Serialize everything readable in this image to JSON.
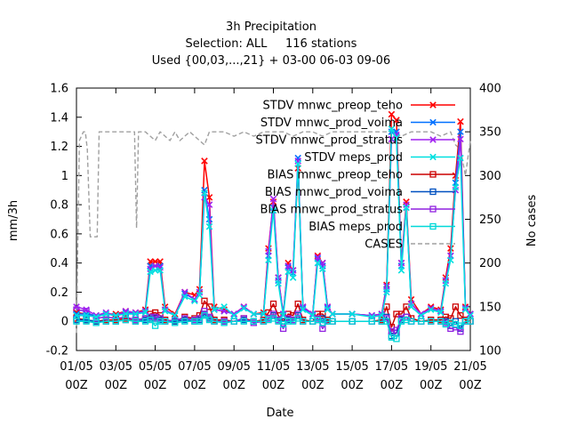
{
  "chart_data": {
    "type": "line",
    "title": [
      "3h Precipitation",
      "Selection: ALL     116 stations",
      "Used {00,03,...,21} + 03-00 06-03 09-06"
    ],
    "xlabel": "Date",
    "ylabel": "mm/3h",
    "y2label": "No cases",
    "xlim": [
      0,
      20
    ],
    "ylim": [
      -0.2,
      1.6
    ],
    "y2lim": [
      100,
      400
    ],
    "grid": false,
    "legend_position": "top-right",
    "x_ticks": [
      {
        "x": 0,
        "label": [
          "01/05",
          "00Z"
        ]
      },
      {
        "x": 2,
        "label": [
          "03/05",
          "00Z"
        ]
      },
      {
        "x": 4,
        "label": [
          "05/05",
          "00Z"
        ]
      },
      {
        "x": 6,
        "label": [
          "07/05",
          "00Z"
        ]
      },
      {
        "x": 8,
        "label": [
          "09/05",
          "00Z"
        ]
      },
      {
        "x": 10,
        "label": [
          "11/05",
          "00Z"
        ]
      },
      {
        "x": 12,
        "label": [
          "13/05",
          "00Z"
        ]
      },
      {
        "x": 14,
        "label": [
          "15/05",
          "00Z"
        ]
      },
      {
        "x": 16,
        "label": [
          "17/05",
          "00Z"
        ]
      },
      {
        "x": 18,
        "label": [
          "19/05",
          "00Z"
        ]
      },
      {
        "x": 20,
        "label": [
          "21/05",
          "00Z"
        ]
      }
    ],
    "y_ticks": [
      "-0.2",
      "0",
      "0.2",
      "0.4",
      "0.6",
      "0.8",
      "1",
      "1.2",
      "1.4",
      "1.6"
    ],
    "y2_ticks": [
      "100",
      "150",
      "200",
      "250",
      "300",
      "350",
      "400"
    ],
    "series": [
      {
        "name": "STDV mnwc_preop_teho",
        "color": "#ff0000",
        "style": "solid",
        "marker": "x",
        "x": [
          0,
          0.5,
          1,
          1.5,
          2,
          2.5,
          3,
          3.5,
          3.75,
          4,
          4.25,
          4.5,
          5,
          5.5,
          6,
          6.25,
          6.5,
          6.75,
          7,
          7.5,
          8,
          8.5,
          9,
          9.5,
          9.75,
          10,
          10.25,
          10.5,
          10.75,
          11,
          11.25,
          11.5,
          12,
          12.25,
          12.5,
          12.75,
          13,
          14,
          15,
          15.5,
          15.75,
          16,
          16.25,
          16.5,
          16.75,
          17,
          17.5,
          18,
          18.5,
          18.75,
          19,
          19.25,
          19.5,
          19.75,
          20
        ],
        "y": [
          0.06,
          0.05,
          0.04,
          0.05,
          0.05,
          0.07,
          0.06,
          0.08,
          0.41,
          0.41,
          0.41,
          0.1,
          0.05,
          0.2,
          0.18,
          0.22,
          1.1,
          0.85,
          0.1,
          0.08,
          0.05,
          0.1,
          0.05,
          0.06,
          0.5,
          0.82,
          0.3,
          0.05,
          0.4,
          0.35,
          1.05,
          0.1,
          0.05,
          0.45,
          0.4,
          0.1,
          0.05,
          0.05,
          0.04,
          0.05,
          0.25,
          1.42,
          1.38,
          0.4,
          0.82,
          0.15,
          0.05,
          0.1,
          0.08,
          0.3,
          0.5,
          1.0,
          1.37,
          0.1,
          0.05
        ]
      },
      {
        "name": "STDV mnwc_prod_voima",
        "color": "#0070ff",
        "style": "solid",
        "marker": "x",
        "x": [
          0,
          0.5,
          1,
          1.5,
          2,
          2.5,
          3,
          3.5,
          3.75,
          4,
          4.25,
          4.5,
          5,
          5.5,
          6,
          6.25,
          6.5,
          6.75,
          7,
          7.5,
          8,
          8.5,
          9,
          9.5,
          9.75,
          10,
          10.25,
          10.5,
          10.75,
          11,
          11.25,
          11.5,
          12,
          12.25,
          12.5,
          12.75,
          13,
          14,
          15,
          15.5,
          15.75,
          16,
          16.25,
          16.5,
          16.75,
          17,
          17.5,
          18,
          18.5,
          18.75,
          19,
          19.25,
          19.5,
          19.75,
          20
        ],
        "y": [
          0.05,
          0.05,
          0.04,
          0.05,
          0.04,
          0.06,
          0.05,
          0.07,
          0.38,
          0.38,
          0.38,
          0.08,
          0.04,
          0.19,
          0.15,
          0.2,
          0.9,
          0.7,
          0.08,
          0.07,
          0.05,
          0.09,
          0.05,
          0.05,
          0.45,
          0.78,
          0.28,
          0.05,
          0.37,
          0.33,
          1.12,
          0.09,
          0.05,
          0.43,
          0.38,
          0.09,
          0.05,
          0.05,
          0.04,
          0.05,
          0.22,
          1.3,
          1.3,
          0.38,
          0.78,
          0.12,
          0.05,
          0.09,
          0.07,
          0.28,
          0.45,
          0.95,
          1.3,
          0.09,
          0.05
        ]
      },
      {
        "name": "STDV mnwc_prod_stratus",
        "color": "#a020f0",
        "style": "solid",
        "marker": "x",
        "x": [
          0,
          0.5,
          1,
          1.5,
          2,
          2.5,
          3,
          3.5,
          3.75,
          4,
          4.25,
          4.5,
          5,
          5.5,
          6,
          6.25,
          6.5,
          6.75,
          7,
          7.5,
          8,
          8.5,
          9,
          9.5,
          9.75,
          10,
          10.25,
          10.5,
          10.75,
          11,
          11.25,
          11.5,
          12,
          12.25,
          12.5,
          12.75,
          13,
          14,
          15,
          15.5,
          15.75,
          16,
          16.25,
          16.5,
          16.75,
          17,
          17.5,
          18,
          18.5,
          18.75,
          19,
          19.25,
          19.5,
          19.75,
          20
        ],
        "y": [
          0.1,
          0.08,
          0.04,
          0.06,
          0.04,
          0.07,
          0.06,
          0.07,
          0.36,
          0.38,
          0.37,
          0.08,
          0.04,
          0.2,
          0.15,
          0.2,
          0.85,
          0.8,
          0.08,
          0.07,
          0.05,
          0.1,
          0.05,
          0.05,
          0.48,
          0.84,
          0.3,
          0.05,
          0.38,
          0.35,
          1.1,
          0.1,
          0.05,
          0.44,
          0.4,
          0.1,
          0.05,
          0.05,
          0.04,
          0.05,
          0.24,
          1.25,
          1.28,
          0.4,
          0.8,
          0.12,
          0.05,
          0.09,
          0.07,
          0.28,
          0.45,
          0.9,
          1.25,
          0.09,
          0.05
        ]
      },
      {
        "name": "STDV meps_prod",
        "color": "#00e0e0",
        "style": "solid",
        "marker": "x",
        "x": [
          0,
          0.5,
          1,
          1.5,
          2,
          2.5,
          3,
          3.5,
          3.75,
          4,
          4.25,
          4.5,
          5,
          5.5,
          6,
          6.25,
          6.5,
          6.75,
          7,
          7.5,
          8,
          8.5,
          9,
          9.5,
          9.75,
          10,
          10.25,
          10.5,
          10.75,
          11,
          11.25,
          11.5,
          12,
          12.25,
          12.5,
          12.75,
          13,
          14,
          15,
          15.5,
          15.75,
          16,
          16.25,
          16.5,
          16.75,
          17,
          17.5,
          18,
          18.5,
          18.75,
          19,
          19.25,
          19.5,
          19.75,
          20
        ],
        "y": [
          0.04,
          0.04,
          0.03,
          0.05,
          0.04,
          0.05,
          0.05,
          0.06,
          0.34,
          0.35,
          0.35,
          0.07,
          0.04,
          0.17,
          0.14,
          0.18,
          0.88,
          0.65,
          0.08,
          0.1,
          0.04,
          0.09,
          0.05,
          0.05,
          0.42,
          0.76,
          0.26,
          0.04,
          0.34,
          0.3,
          1.08,
          0.08,
          0.04,
          0.4,
          0.36,
          0.08,
          0.05,
          0.05,
          0.03,
          0.04,
          0.2,
          1.32,
          1.26,
          0.35,
          0.78,
          0.1,
          0.04,
          0.08,
          0.06,
          0.26,
          0.42,
          0.92,
          1.12,
          0.08,
          0.04
        ]
      },
      {
        "name": "BIAS mnwc_preop_teho",
        "color": "#cc0000",
        "style": "solid",
        "marker": "square",
        "x": [
          0,
          0.5,
          1,
          1.5,
          2,
          2.5,
          3,
          3.5,
          3.75,
          4,
          4.25,
          4.5,
          5,
          5.5,
          6,
          6.25,
          6.5,
          6.75,
          7,
          7.5,
          8,
          8.5,
          9,
          9.5,
          9.75,
          10,
          10.25,
          10.5,
          10.75,
          11,
          11.25,
          11.5,
          12,
          12.25,
          12.5,
          12.75,
          13,
          14,
          15,
          15.5,
          15.75,
          16,
          16.25,
          16.5,
          16.75,
          17,
          17.5,
          18,
          18.5,
          18.75,
          19,
          19.25,
          19.5,
          19.75,
          20
        ],
        "y": [
          0.02,
          0.01,
          0.0,
          0.01,
          0.01,
          0.02,
          0.01,
          0.02,
          0.05,
          0.06,
          0.04,
          0.01,
          0.0,
          0.03,
          0.02,
          0.04,
          0.14,
          0.1,
          0.01,
          0.01,
          0.0,
          0.02,
          0.0,
          0.01,
          0.06,
          0.12,
          0.04,
          0.0,
          0.05,
          0.04,
          0.12,
          0.01,
          0.0,
          0.05,
          0.05,
          0.01,
          0.0,
          0.0,
          0.0,
          0.01,
          0.1,
          -0.04,
          0.05,
          0.05,
          0.1,
          0.02,
          0.0,
          0.01,
          0.01,
          0.03,
          0.02,
          0.1,
          0.04,
          0.01,
          0.0
        ]
      },
      {
        "name": "BIAS mnwc_prod_voima",
        "color": "#0050c0",
        "style": "solid",
        "marker": "square",
        "x": [
          0,
          0.5,
          1,
          1.5,
          2,
          2.5,
          3,
          3.5,
          3.75,
          4,
          4.25,
          4.5,
          5,
          5.5,
          6,
          6.25,
          6.5,
          6.75,
          7,
          7.5,
          8,
          8.5,
          9,
          9.5,
          9.75,
          10,
          10.25,
          10.5,
          10.75,
          11,
          11.25,
          11.5,
          12,
          12.25,
          12.5,
          12.75,
          13,
          14,
          15,
          15.5,
          15.75,
          16,
          16.25,
          16.5,
          16.75,
          17,
          17.5,
          18,
          18.5,
          18.75,
          19,
          19.25,
          19.5,
          19.75,
          20
        ],
        "y": [
          0.01,
          0.01,
          0.0,
          0.0,
          0.0,
          0.01,
          0.0,
          0.01,
          0.02,
          0.02,
          0.01,
          0.0,
          0.0,
          0.01,
          0.0,
          0.01,
          0.05,
          0.02,
          0.0,
          0.0,
          0.0,
          0.01,
          0.0,
          0.0,
          0.02,
          0.04,
          0.01,
          0.0,
          0.01,
          0.01,
          0.04,
          0.0,
          0.0,
          0.01,
          0.02,
          0.0,
          0.0,
          0.0,
          0.0,
          0.0,
          0.03,
          -0.1,
          -0.08,
          0.01,
          0.03,
          0.0,
          0.0,
          0.0,
          0.0,
          0.0,
          -0.03,
          0.0,
          -0.05,
          0.0,
          0.0
        ]
      },
      {
        "name": "BIAS mnwc_prod_stratus",
        "color": "#9020e0",
        "style": "solid",
        "marker": "square",
        "x": [
          0,
          0.5,
          1,
          1.5,
          2,
          2.5,
          3,
          3.5,
          3.75,
          4,
          4.25,
          4.5,
          5,
          5.5,
          6,
          6.25,
          6.5,
          6.75,
          7,
          7.5,
          8,
          8.5,
          9,
          9.5,
          9.75,
          10,
          10.25,
          10.5,
          10.75,
          11,
          11.25,
          11.5,
          12,
          12.25,
          12.5,
          12.75,
          13,
          14,
          15,
          15.5,
          15.75,
          16,
          16.25,
          16.5,
          16.75,
          17,
          17.5,
          18,
          18.5,
          18.75,
          19,
          19.25,
          19.5,
          19.75,
          20
        ],
        "y": [
          0.08,
          0.07,
          0.02,
          0.03,
          0.02,
          0.03,
          0.01,
          0.02,
          0.03,
          0.03,
          0.02,
          0.0,
          0.01,
          0.02,
          0.01,
          0.02,
          0.07,
          0.03,
          0.0,
          0.0,
          0.0,
          0.02,
          -0.01,
          0.0,
          0.02,
          0.05,
          0.01,
          -0.05,
          0.02,
          0.01,
          0.05,
          0.0,
          0.0,
          0.02,
          -0.05,
          0.0,
          0.0,
          0.0,
          0.0,
          0.0,
          0.02,
          -0.07,
          -0.06,
          0.02,
          0.03,
          0.0,
          0.0,
          0.0,
          0.0,
          -0.01,
          -0.05,
          -0.04,
          -0.07,
          0.0,
          0.0
        ]
      },
      {
        "name": "BIAS meps_prod",
        "color": "#00d8d8",
        "style": "solid",
        "marker": "square",
        "x": [
          0,
          0.5,
          1,
          1.5,
          2,
          2.5,
          3,
          3.5,
          3.75,
          4,
          4.25,
          4.5,
          5,
          5.5,
          6,
          6.25,
          6.5,
          6.75,
          7,
          7.5,
          8,
          8.5,
          9,
          9.5,
          9.75,
          10,
          10.25,
          10.5,
          10.75,
          11,
          11.25,
          11.5,
          12,
          12.25,
          12.5,
          12.75,
          13,
          14,
          15,
          15.5,
          15.75,
          16,
          16.25,
          16.5,
          16.75,
          17,
          17.5,
          18,
          18.5,
          18.75,
          19,
          19.25,
          19.5,
          19.75,
          20
        ],
        "y": [
          0.0,
          0.0,
          -0.01,
          0.0,
          0.0,
          0.01,
          0.0,
          0.0,
          0.01,
          -0.03,
          0.0,
          0.0,
          -0.01,
          0.0,
          0.0,
          0.0,
          0.04,
          0.01,
          0.0,
          -0.01,
          0.0,
          0.0,
          0.0,
          0.0,
          0.01,
          0.02,
          0.0,
          -0.02,
          0.0,
          0.0,
          0.02,
          0.0,
          0.0,
          0.01,
          -0.01,
          0.0,
          0.0,
          0.0,
          0.0,
          0.0,
          0.0,
          -0.11,
          -0.12,
          0.0,
          0.01,
          0.0,
          0.0,
          0.0,
          0.0,
          -0.02,
          -0.01,
          -0.02,
          -0.03,
          0.0,
          0.0
        ]
      },
      {
        "name": "CASES",
        "color": "#a0a0a0",
        "style": "dashed",
        "marker": "none",
        "axis": "y2",
        "x": [
          0,
          0.15,
          0.35,
          0.45,
          0.55,
          0.7,
          1.05,
          1.15,
          1.25,
          1.5,
          1.75,
          2.05,
          2.5,
          2.95,
          3.05,
          3.15,
          3.5,
          3.75,
          4.0,
          4.25,
          4.5,
          4.75,
          5.0,
          5.25,
          5.5,
          5.75,
          6.0,
          6.25,
          6.5,
          6.75,
          7.0,
          7.5,
          8.0,
          8.5,
          9.0,
          9.5,
          10.0,
          10.5,
          11.0,
          11.5,
          12.0,
          12.5,
          13.0,
          13.5,
          14.0,
          14.5,
          15.0,
          15.5,
          16.0,
          16.5,
          17.0,
          17.5,
          18.0,
          18.5,
          19.0,
          19.25,
          19.5,
          19.75,
          20.0
        ],
        "y": [
          120,
          340,
          350,
          350,
          330,
          230,
          230,
          350,
          350,
          350,
          350,
          350,
          350,
          350,
          240,
          350,
          350,
          345,
          340,
          350,
          345,
          340,
          350,
          340,
          345,
          350,
          345,
          340,
          335,
          350,
          350,
          350,
          345,
          350,
          345,
          350,
          350,
          350,
          345,
          350,
          350,
          345,
          350,
          350,
          350,
          350,
          350,
          350,
          350,
          345,
          350,
          350,
          350,
          345,
          350,
          335,
          330,
          300,
          340
        ]
      }
    ]
  }
}
